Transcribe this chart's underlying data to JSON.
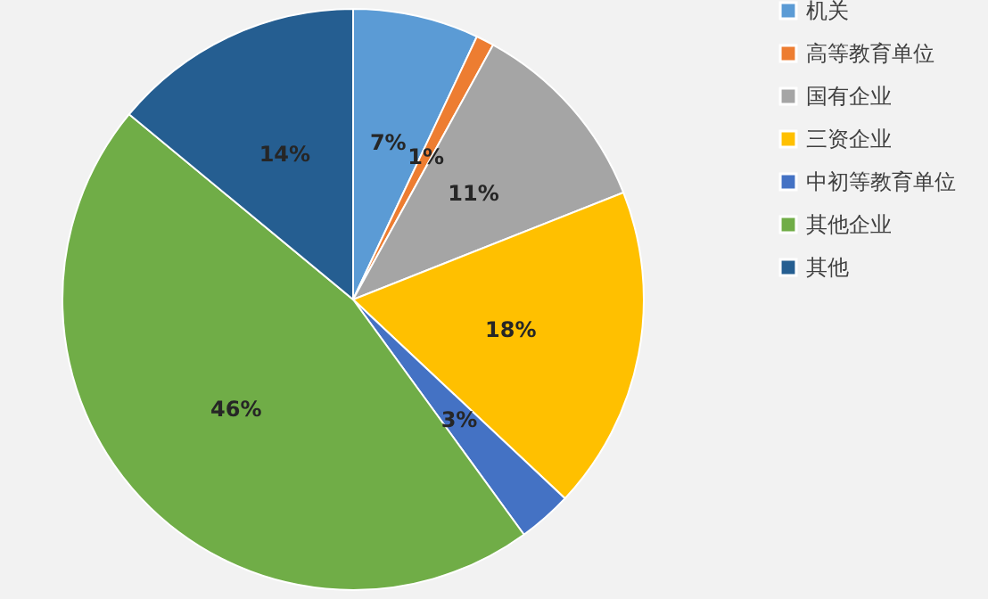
{
  "chart_data": {
    "type": "pie",
    "categories": [
      "机关",
      "高等教育单位",
      "国有企业",
      "三资企业",
      "中初等教育单位",
      "其他企业",
      "其他"
    ],
    "values": [
      7,
      1,
      11,
      18,
      3,
      46,
      14
    ],
    "colors": [
      "#5b9bd5",
      "#ed7d31",
      "#a5a5a5",
      "#ffc000",
      "#4472c4",
      "#70ad47",
      "#255e91"
    ],
    "value_labels": [
      "7%",
      "1%",
      "11%",
      "18%",
      "3%",
      "46%",
      "14%"
    ],
    "legend": "right"
  }
}
